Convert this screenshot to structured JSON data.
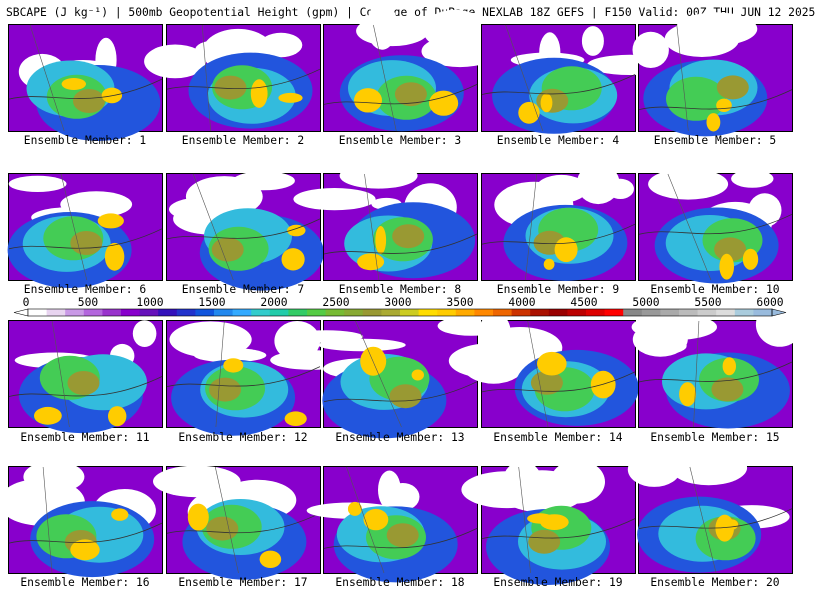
{
  "title": "SBCAPE (J kg⁻¹) | 500mb Geopotential Height (gpm) | College of DuPage NEXLAB 18Z GEFS | F150 Valid: 00Z THU JUN 12 2025",
  "panel_label_prefix": "Ensemble Member: ",
  "members": [
    "1",
    "2",
    "3",
    "4",
    "5",
    "6",
    "7",
    "8",
    "9",
    "10",
    "11",
    "12",
    "13",
    "14",
    "15",
    "16",
    "17",
    "18",
    "19",
    "20"
  ],
  "colorbar": {
    "ticks": [
      "0",
      "500",
      "1000",
      "1500",
      "2000",
      "2500",
      "3000",
      "3500",
      "4000",
      "4500",
      "5000",
      "5500",
      "6000"
    ],
    "colors": [
      "#ffffff",
      "#e8d4f0",
      "#c999e6",
      "#b366dd",
      "#9933cc",
      "#8800cc",
      "#6611bb",
      "#3311bb",
      "#2233cc",
      "#1155dd",
      "#2288ee",
      "#33aaff",
      "#33cccc",
      "#22ccaa",
      "#33cc66",
      "#55cc44",
      "#77bb33",
      "#88aa33",
      "#999933",
      "#aaaa33",
      "#cccc22",
      "#ffdd00",
      "#ffcc00",
      "#ffaa00",
      "#ff8800",
      "#ee6600",
      "#cc3300",
      "#aa1100",
      "#990000",
      "#bb0000",
      "#dd0000",
      "#ff0000",
      "#888888",
      "#999999",
      "#aaaaaa",
      "#bbbbbb",
      "#cccccc",
      "#dddddd",
      "#aaccdd",
      "#99bbdd"
    ]
  }
}
